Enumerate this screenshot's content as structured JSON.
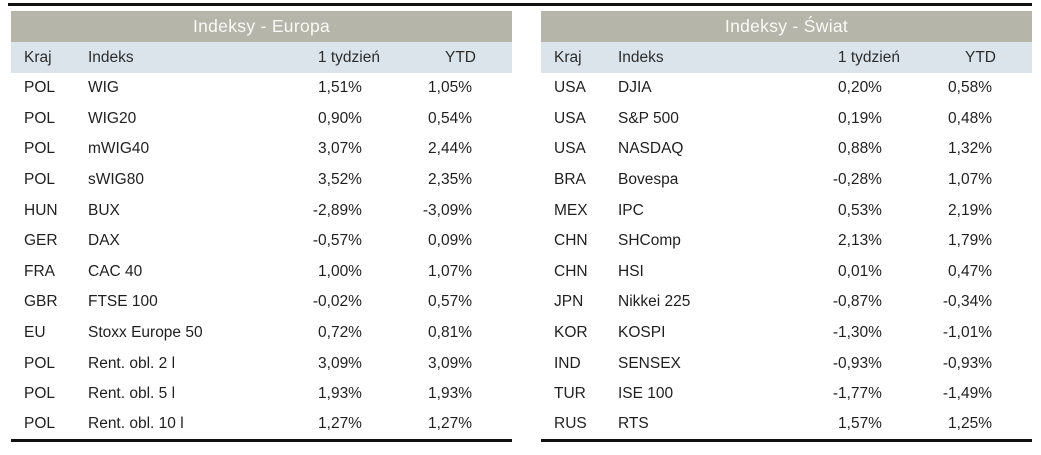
{
  "colors": {
    "title_bg": "#b5b5aa",
    "title_text": "#fafaf7",
    "header_bg": "#dbe4ea",
    "text": "#1f1f1f",
    "rule": "#111111",
    "page_bg": "#ffffff"
  },
  "tables": [
    {
      "title": "Indeksy - Europa",
      "columns": [
        "Kraj",
        "Indeks",
        "1 tydzień",
        "YTD"
      ],
      "rows": [
        [
          "POL",
          "WIG",
          "1,51%",
          "1,05%"
        ],
        [
          "POL",
          "WIG20",
          "0,90%",
          "0,54%"
        ],
        [
          "POL",
          "mWIG40",
          "3,07%",
          "2,44%"
        ],
        [
          "POL",
          "sWIG80",
          "3,52%",
          "2,35%"
        ],
        [
          "HUN",
          "BUX",
          "-2,89%",
          "-3,09%"
        ],
        [
          "GER",
          "DAX",
          "-0,57%",
          "0,09%"
        ],
        [
          "FRA",
          "CAC 40",
          "1,00%",
          "1,07%"
        ],
        [
          "GBR",
          "FTSE 100",
          "-0,02%",
          "0,57%"
        ],
        [
          "EU",
          "Stoxx Europe 50",
          "0,72%",
          "0,81%"
        ],
        [
          "POL",
          "Rent. obl. 2 l",
          "3,09%",
          "3,09%"
        ],
        [
          "POL",
          "Rent. obl. 5 l",
          "1,93%",
          "1,93%"
        ],
        [
          "POL",
          "Rent. obl. 10 l",
          "1,27%",
          "1,27%"
        ]
      ]
    },
    {
      "title": "Indeksy - Świat",
      "columns": [
        "Kraj",
        "Indeks",
        "1 tydzień",
        "YTD"
      ],
      "rows": [
        [
          "USA",
          "DJIA",
          "0,20%",
          "0,58%"
        ],
        [
          "USA",
          "S&P 500",
          "0,19%",
          "0,48%"
        ],
        [
          "USA",
          "NASDAQ",
          "0,88%",
          "1,32%"
        ],
        [
          "BRA",
          "Bovespa",
          "-0,28%",
          "1,07%"
        ],
        [
          "MEX",
          "IPC",
          "0,53%",
          "2,19%"
        ],
        [
          "CHN",
          "SHComp",
          "2,13%",
          "1,79%"
        ],
        [
          "CHN",
          "HSI",
          "0,01%",
          "0,47%"
        ],
        [
          "JPN",
          "Nikkei 225",
          "-0,87%",
          "-0,34%"
        ],
        [
          "KOR",
          "KOSPI",
          "-1,30%",
          "-1,01%"
        ],
        [
          "IND",
          "SENSEX",
          "-0,93%",
          "-0,93%"
        ],
        [
          "TUR",
          "ISE 100",
          "-1,77%",
          "-1,49%"
        ],
        [
          "RUS",
          "RTS",
          "1,57%",
          "1,25%"
        ]
      ]
    }
  ]
}
